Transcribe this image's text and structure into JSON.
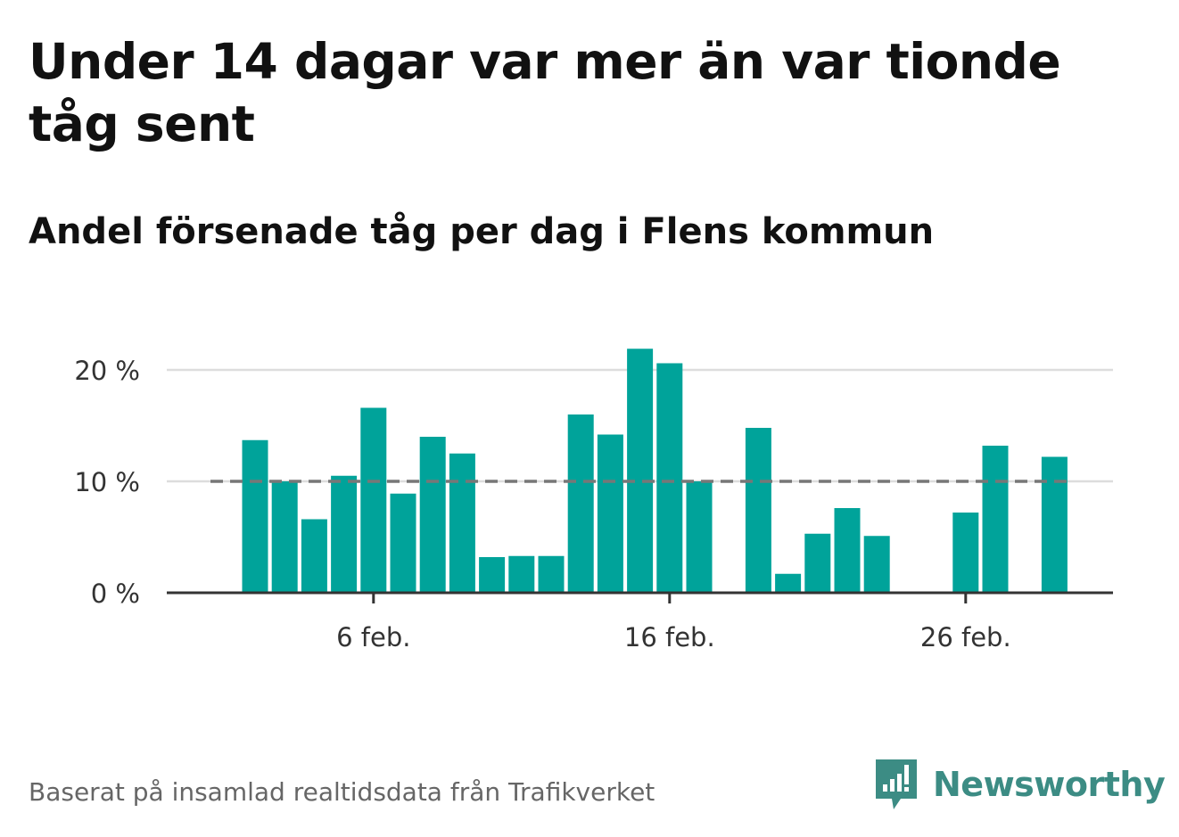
{
  "title": "Under 14 dagar var mer än var tionde tåg sent",
  "subtitle": "Andel försenade tåg per dag i Flens kommun",
  "source": "Baserat på insamlad realtidsdata från Trafikverket",
  "brand": {
    "name": "Newsworthy",
    "icon": "newsworthy-logo-icon",
    "color": "#3c8c84"
  },
  "colors": {
    "bar": "#00a39a",
    "reference": "#777777",
    "grid": "#dddddd",
    "axis": "#333333"
  },
  "chart_data": {
    "type": "bar",
    "x_unit": "day (February)",
    "x": [
      2,
      3,
      4,
      5,
      6,
      7,
      8,
      9,
      10,
      11,
      12,
      13,
      14,
      15,
      16,
      17,
      18,
      19,
      20,
      21,
      22,
      23,
      24,
      25,
      26,
      27,
      28,
      29
    ],
    "values": [
      13.7,
      10.0,
      6.6,
      10.5,
      16.6,
      8.9,
      14.0,
      12.5,
      3.2,
      3.3,
      3.3,
      16.0,
      14.2,
      21.9,
      20.6,
      10.0,
      null,
      14.8,
      1.7,
      5.3,
      7.6,
      5.1,
      null,
      null,
      7.2,
      13.2,
      null,
      12.2
    ],
    "reference_line": 10,
    "ylim": [
      0,
      22
    ],
    "yticks": [
      {
        "value": 0,
        "label": "0 %"
      },
      {
        "value": 10,
        "label": "10 %"
      },
      {
        "value": 20,
        "label": "20 %"
      }
    ],
    "xticks": [
      {
        "value": 6,
        "label": "6 feb."
      },
      {
        "value": 16,
        "label": "16 feb."
      },
      {
        "value": 26,
        "label": "26 feb."
      }
    ],
    "grid": true,
    "legend": "none"
  }
}
